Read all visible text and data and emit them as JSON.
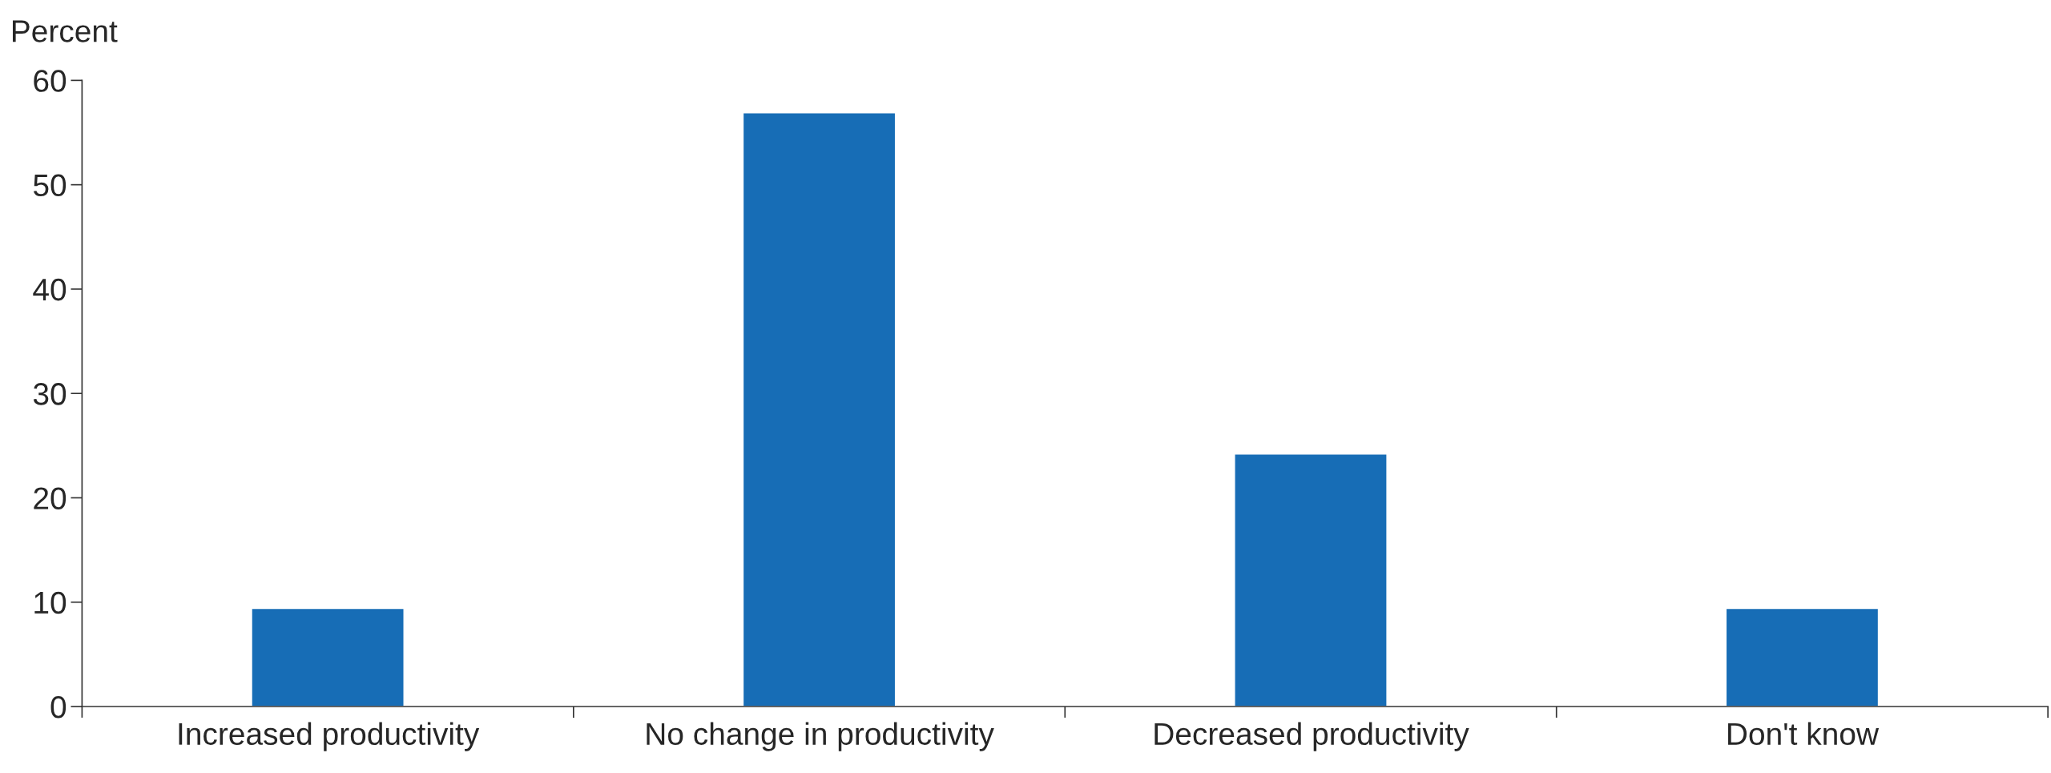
{
  "chart_data": {
    "type": "bar",
    "ylabel": "Percent",
    "categories": [
      "Increased productivity",
      "No change in productivity",
      "Decreased productivity",
      "Don't know"
    ],
    "values": [
      9.4,
      56.9,
      24.2,
      9.4
    ],
    "color": "#176db6",
    "ylim": [
      0,
      60
    ],
    "yticks": [
      0,
      10,
      20,
      30,
      40,
      50,
      60
    ],
    "grid": false
  }
}
